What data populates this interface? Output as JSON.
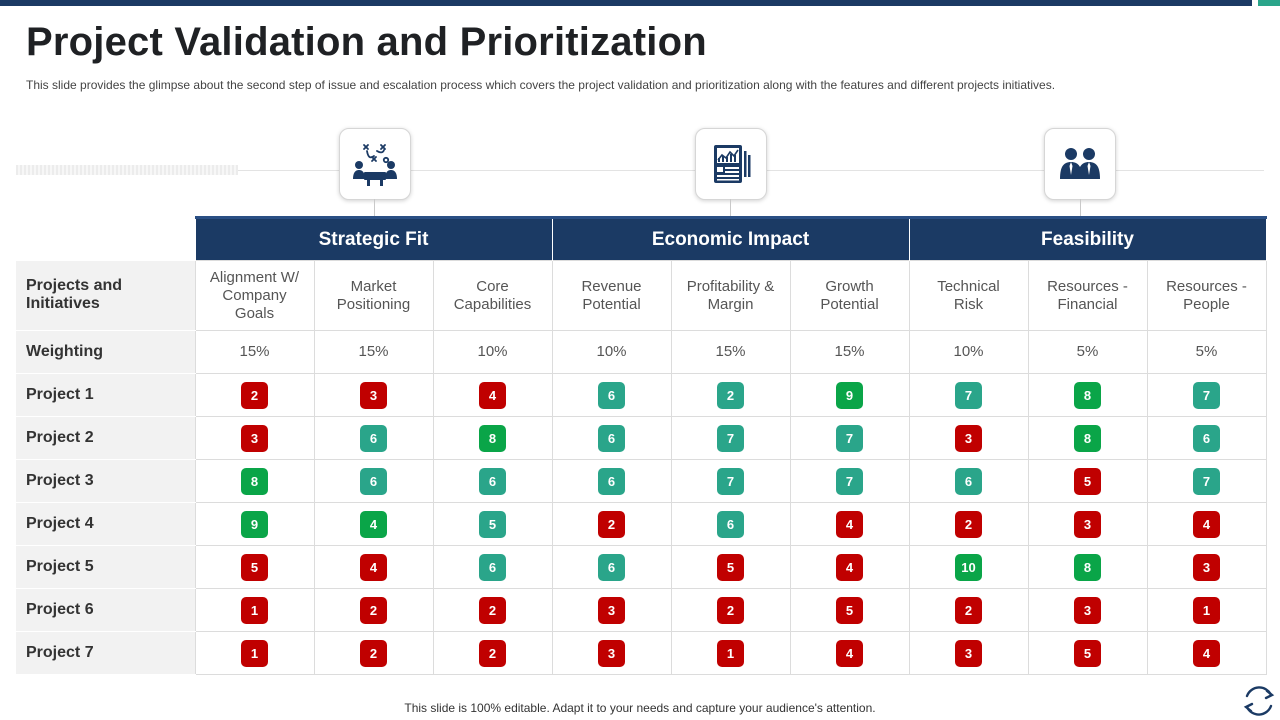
{
  "page": {
    "title": "Project Validation and Prioritization",
    "subtitle": "This slide provides  the glimpse about the second step of issue and escalation process which covers the project validation  and prioritization along with the features  and different  projects initiatives.",
    "footer": "This slide is 100% editable. Adapt it to your needs and capture your audience's attention."
  },
  "colors": {
    "navy": "#1b3a64",
    "red": "#c00000",
    "teal": "#2aa58a",
    "green": "#0aa548"
  },
  "icons": [
    "strategy-board-icon",
    "report-chart-icon",
    "team-people-icon",
    "refresh-icon"
  ],
  "table": {
    "categories": [
      {
        "label": "Strategic Fit",
        "span": 3
      },
      {
        "label": "Economic Impact",
        "span": 3
      },
      {
        "label": "Feasibility",
        "span": 3
      }
    ],
    "header_label": "Projects and Initiatives",
    "columns": [
      "Alignment W/ Company Goals",
      "Market Positioning",
      "Core Capabilities",
      "Revenue Potential",
      "Profitability & Margin",
      "Growth Potential",
      "Technical Risk",
      "Resources - Financial",
      "Resources - People"
    ],
    "weighting_label": "Weighting",
    "weighting": [
      "15%",
      "15%",
      "10%",
      "10%",
      "15%",
      "15%",
      "10%",
      "5%",
      "5%"
    ],
    "projects": [
      {
        "name": "Project 1",
        "scores": [
          {
            "v": "2",
            "c": "red"
          },
          {
            "v": "3",
            "c": "red"
          },
          {
            "v": "4",
            "c": "red"
          },
          {
            "v": "6",
            "c": "teal"
          },
          {
            "v": "2",
            "c": "teal"
          },
          {
            "v": "9",
            "c": "green"
          },
          {
            "v": "7",
            "c": "teal"
          },
          {
            "v": "8",
            "c": "green"
          },
          {
            "v": "7",
            "c": "teal"
          }
        ]
      },
      {
        "name": "Project 2",
        "scores": [
          {
            "v": "3",
            "c": "red"
          },
          {
            "v": "6",
            "c": "teal"
          },
          {
            "v": "8",
            "c": "green"
          },
          {
            "v": "6",
            "c": "teal"
          },
          {
            "v": "7",
            "c": "teal"
          },
          {
            "v": "7",
            "c": "teal"
          },
          {
            "v": "3",
            "c": "red"
          },
          {
            "v": "8",
            "c": "green"
          },
          {
            "v": "6",
            "c": "teal"
          }
        ]
      },
      {
        "name": "Project 3",
        "scores": [
          {
            "v": "8",
            "c": "green"
          },
          {
            "v": "6",
            "c": "teal"
          },
          {
            "v": "6",
            "c": "teal"
          },
          {
            "v": "6",
            "c": "teal"
          },
          {
            "v": "7",
            "c": "teal"
          },
          {
            "v": "7",
            "c": "teal"
          },
          {
            "v": "6",
            "c": "teal"
          },
          {
            "v": "5",
            "c": "red"
          },
          {
            "v": "7",
            "c": "teal"
          }
        ]
      },
      {
        "name": "Project 4",
        "scores": [
          {
            "v": "9",
            "c": "green"
          },
          {
            "v": "4",
            "c": "green"
          },
          {
            "v": "5",
            "c": "teal"
          },
          {
            "v": "2",
            "c": "red"
          },
          {
            "v": "6",
            "c": "teal"
          },
          {
            "v": "4",
            "c": "red"
          },
          {
            "v": "2",
            "c": "red"
          },
          {
            "v": "3",
            "c": "red"
          },
          {
            "v": "4",
            "c": "red"
          }
        ]
      },
      {
        "name": "Project 5",
        "scores": [
          {
            "v": "5",
            "c": "red"
          },
          {
            "v": "4",
            "c": "red"
          },
          {
            "v": "6",
            "c": "teal"
          },
          {
            "v": "6",
            "c": "teal"
          },
          {
            "v": "5",
            "c": "red"
          },
          {
            "v": "4",
            "c": "red"
          },
          {
            "v": "10",
            "c": "green"
          },
          {
            "v": "8",
            "c": "green"
          },
          {
            "v": "3",
            "c": "red"
          }
        ]
      },
      {
        "name": "Project 6",
        "scores": [
          {
            "v": "1",
            "c": "red"
          },
          {
            "v": "2",
            "c": "red"
          },
          {
            "v": "2",
            "c": "red"
          },
          {
            "v": "3",
            "c": "red"
          },
          {
            "v": "2",
            "c": "red"
          },
          {
            "v": "5",
            "c": "red"
          },
          {
            "v": "2",
            "c": "red"
          },
          {
            "v": "3",
            "c": "red"
          },
          {
            "v": "1",
            "c": "red"
          }
        ]
      },
      {
        "name": "Project 7",
        "scores": [
          {
            "v": "1",
            "c": "red"
          },
          {
            "v": "2",
            "c": "red"
          },
          {
            "v": "2",
            "c": "red"
          },
          {
            "v": "3",
            "c": "red"
          },
          {
            "v": "1",
            "c": "red"
          },
          {
            "v": "4",
            "c": "red"
          },
          {
            "v": "3",
            "c": "red"
          },
          {
            "v": "5",
            "c": "red"
          },
          {
            "v": "4",
            "c": "red"
          }
        ]
      }
    ]
  }
}
